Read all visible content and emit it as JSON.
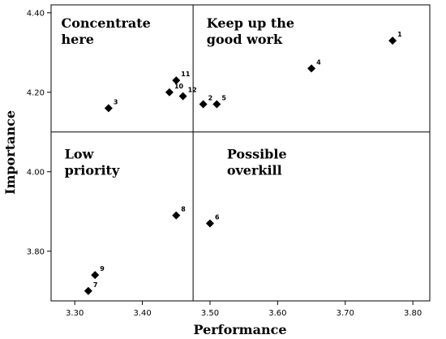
{
  "chart_data": {
    "type": "scatter",
    "xlabel": "Performance",
    "ylabel": "Importance",
    "xlim": [
      3.265,
      3.825
    ],
    "ylim": [
      3.675,
      4.42
    ],
    "x_ticks": [
      "3.30",
      "3.40",
      "3.50",
      "3.60",
      "3.70",
      "3.80"
    ],
    "x_tick_values": [
      3.3,
      3.4,
      3.5,
      3.6,
      3.7,
      3.8
    ],
    "y_ticks": [
      "3.80",
      "4.00",
      "4.20",
      "4.40"
    ],
    "y_tick_values": [
      3.8,
      4.0,
      4.2,
      4.4
    ],
    "reference_lines": {
      "x": 3.475,
      "y": 4.1
    },
    "grid": false,
    "marker": "diamond",
    "marker_color": "#000000",
    "quadrants": [
      {
        "lines": [
          "Concentrate",
          "here"
        ],
        "anchor": [
          3.28,
          4.4
        ]
      },
      {
        "lines": [
          "Keep up the",
          "good work"
        ],
        "anchor": [
          3.495,
          4.4
        ]
      },
      {
        "lines": [
          "Low",
          "priority"
        ],
        "anchor": [
          3.285,
          4.07
        ]
      },
      {
        "lines": [
          "Possible",
          "overkill"
        ],
        "anchor": [
          3.525,
          4.07
        ]
      }
    ],
    "points": [
      {
        "label": "1",
        "x": 3.77,
        "y": 4.33
      },
      {
        "label": "2",
        "x": 3.49,
        "y": 4.17
      },
      {
        "label": "3",
        "x": 3.35,
        "y": 4.16
      },
      {
        "label": "4",
        "x": 3.65,
        "y": 4.26
      },
      {
        "label": "5",
        "x": 3.51,
        "y": 4.17
      },
      {
        "label": "6",
        "x": 3.5,
        "y": 3.87
      },
      {
        "label": "7",
        "x": 3.32,
        "y": 3.7
      },
      {
        "label": "8",
        "x": 3.45,
        "y": 3.89
      },
      {
        "label": "9",
        "x": 3.33,
        "y": 3.74
      },
      {
        "label": "10",
        "x": 3.44,
        "y": 4.2
      },
      {
        "label": "11",
        "x": 3.45,
        "y": 4.23
      },
      {
        "label": "12",
        "x": 3.46,
        "y": 4.19
      }
    ]
  }
}
